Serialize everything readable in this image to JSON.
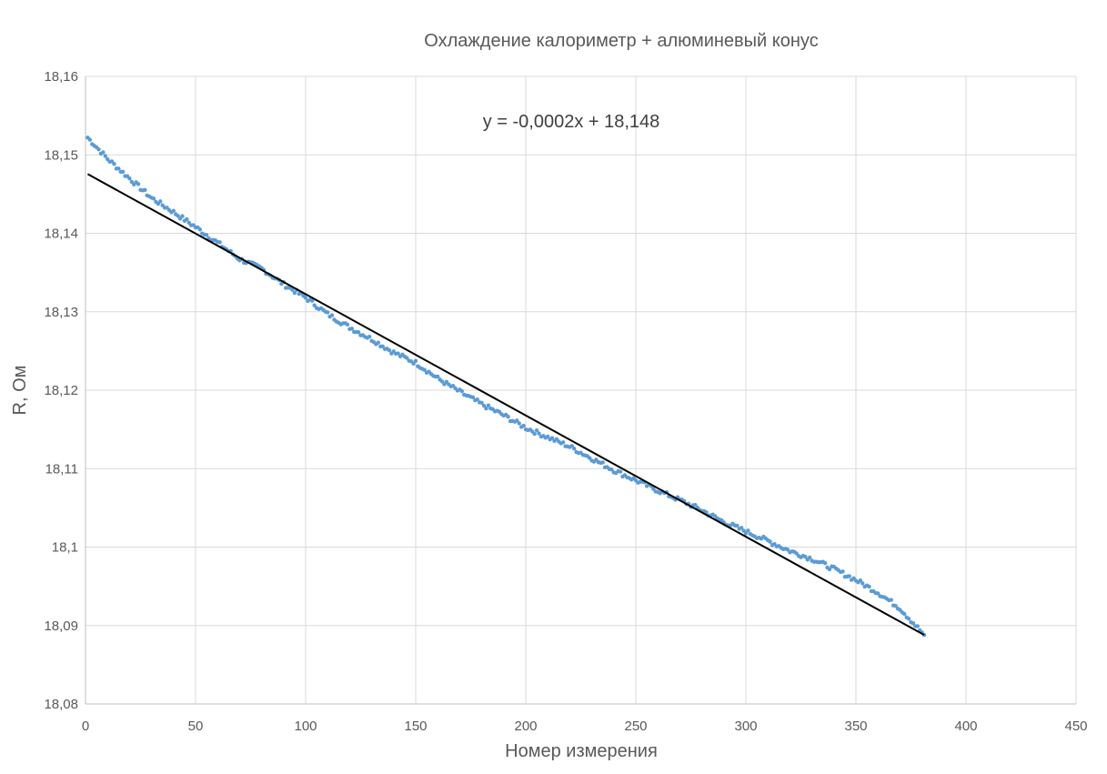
{
  "chart_data": {
    "type": "scatter",
    "title": "Охлаждение калориметр + алюминевый конус",
    "xlabel": "Номер измерения",
    "ylabel": "R, Ом",
    "xlim": [
      0,
      450
    ],
    "ylim": [
      18.08,
      18.16
    ],
    "x_ticks": [
      "0",
      "50",
      "100",
      "150",
      "200",
      "250",
      "300",
      "350",
      "400",
      "450"
    ],
    "y_ticks": [
      "18,08",
      "18,09",
      "18,1",
      "18,11",
      "18,12",
      "18,13",
      "18,14",
      "18,15",
      "18,16"
    ],
    "grid": true,
    "legend": "none",
    "series": [
      {
        "color": "#5b9bd5",
        "points": [
          [
            1,
            18.1522
          ],
          [
            10,
            18.1495
          ],
          [
            20,
            18.147
          ],
          [
            30,
            18.1445
          ],
          [
            40,
            18.1427
          ],
          [
            50,
            18.1408
          ],
          [
            60,
            18.1388
          ],
          [
            70,
            18.1367
          ],
          [
            80,
            18.1355
          ],
          [
            90,
            18.1335
          ],
          [
            100,
            18.1318
          ],
          [
            110,
            18.1297
          ],
          [
            120,
            18.128
          ],
          [
            130,
            18.1265
          ],
          [
            140,
            18.1248
          ],
          [
            150,
            18.1235
          ],
          [
            160,
            18.1215
          ],
          [
            170,
            18.1198
          ],
          [
            180,
            18.1182
          ],
          [
            190,
            18.1168
          ],
          [
            200,
            18.1152
          ],
          [
            210,
            18.114
          ],
          [
            220,
            18.1128
          ],
          [
            230,
            18.1113
          ],
          [
            240,
            18.1098
          ],
          [
            250,
            18.1085
          ],
          [
            260,
            18.1072
          ],
          [
            270,
            18.106
          ],
          [
            280,
            18.1047
          ],
          [
            290,
            18.1032
          ],
          [
            300,
            18.102
          ],
          [
            310,
            18.1008
          ],
          [
            320,
            18.0995
          ],
          [
            330,
            18.0985
          ],
          [
            340,
            18.0972
          ],
          [
            350,
            18.0958
          ],
          [
            360,
            18.0942
          ],
          [
            370,
            18.0922
          ],
          [
            381,
            18.0888
          ]
        ]
      }
    ],
    "trendline": {
      "equation": "y = -0,0002x + 18,148",
      "slope": -0.0001546,
      "intercept": 18.1477,
      "x_range": [
        1,
        381
      ],
      "color": "#000000"
    }
  }
}
